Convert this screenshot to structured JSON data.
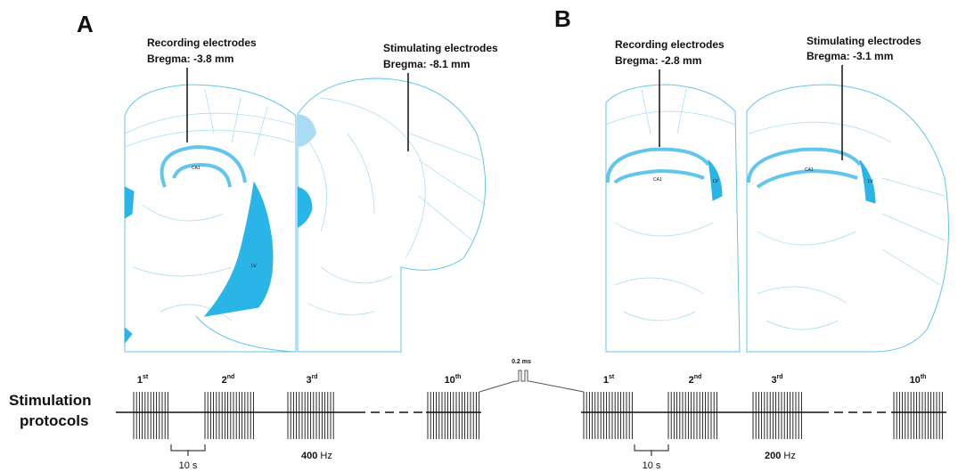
{
  "panels": [
    {
      "label": "A",
      "recording": {
        "title": "Recording electrodes",
        "bregma": "Bregma: -3.8 mm"
      },
      "stimulating": {
        "title": "Stimulating electrodes",
        "bregma": "Bregma: -8.1 mm"
      },
      "regions": [
        "CA1",
        "LV"
      ],
      "trains": [
        {
          "num": "1",
          "sup": "st"
        },
        {
          "num": "2",
          "sup": "nd"
        },
        {
          "num": "3",
          "sup": "rd"
        },
        {
          "num": "10",
          "sup": "th"
        }
      ],
      "interval": "10 s",
      "frequency": {
        "value": "400",
        "unit": "Hz"
      }
    },
    {
      "label": "B",
      "recording": {
        "title": "Recording electrodes",
        "bregma": "Bregma: -2.8 mm"
      },
      "stimulating": {
        "title": "Stimulating electrodes",
        "bregma": "Bregma: -3.1 mm"
      },
      "regions": [
        "CA1",
        "LV"
      ],
      "trains": [
        {
          "num": "1",
          "sup": "st"
        },
        {
          "num": "2",
          "sup": "nd"
        },
        {
          "num": "3",
          "sup": "rd"
        },
        {
          "num": "10",
          "sup": "th"
        }
      ],
      "interval": "10 s",
      "frequency": {
        "value": "200",
        "unit": "Hz"
      }
    }
  ],
  "protocol": {
    "title_line1": "Stimulation",
    "title_line2": "protocols",
    "pulse_width": "0.2 ms"
  }
}
